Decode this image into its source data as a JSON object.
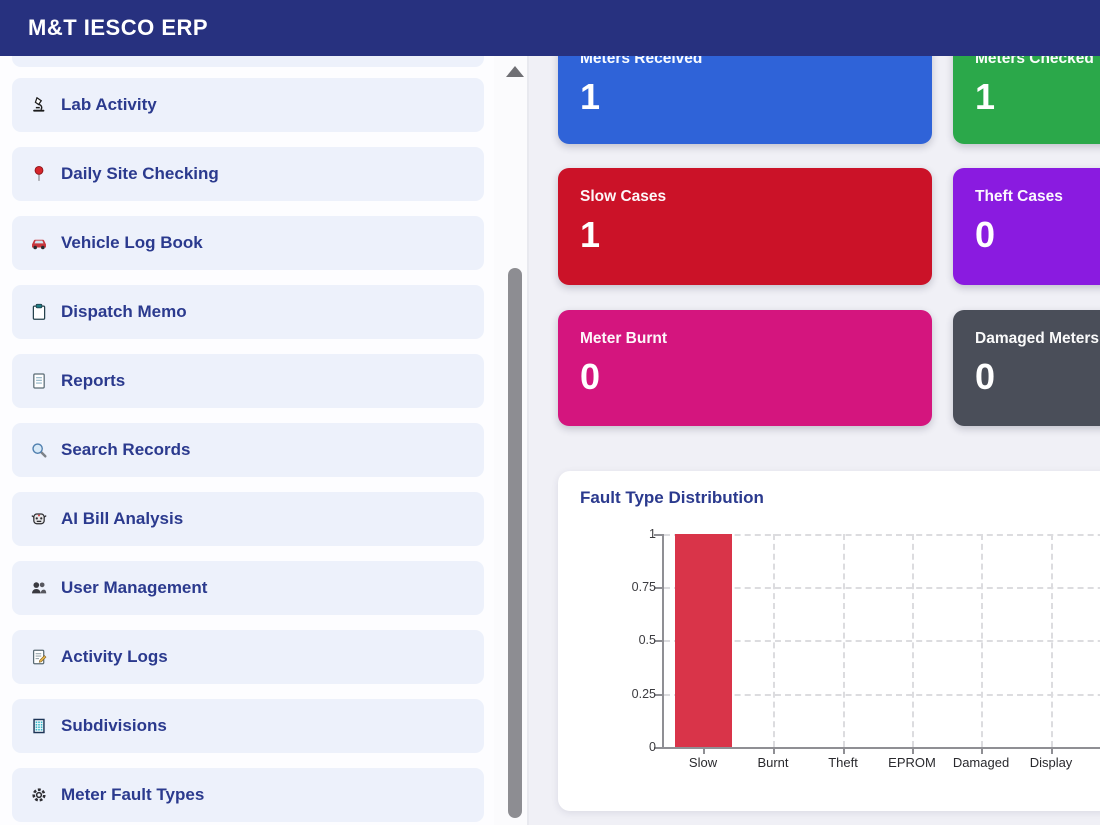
{
  "header": {
    "title": "M&T IESCO ERP"
  },
  "sidebar": {
    "items": [
      {
        "label": "Lab Activity",
        "icon": "microscope-icon"
      },
      {
        "label": "Daily Site Checking",
        "icon": "pushpin-icon"
      },
      {
        "label": "Vehicle Log Book",
        "icon": "car-icon"
      },
      {
        "label": "Dispatch Memo",
        "icon": "clipboard-icon"
      },
      {
        "label": "Reports",
        "icon": "document-icon"
      },
      {
        "label": "Search Records",
        "icon": "magnifier-icon"
      },
      {
        "label": "AI Bill Analysis",
        "icon": "robot-icon"
      },
      {
        "label": "User Management",
        "icon": "users-icon"
      },
      {
        "label": "Activity Logs",
        "icon": "memo-icon"
      },
      {
        "label": "Subdivisions",
        "icon": "building-icon"
      },
      {
        "label": "Meter Fault Types",
        "icon": "gear-icon"
      }
    ]
  },
  "stats": {
    "cards": [
      {
        "label": "Meters Received",
        "value": "1",
        "color": "#2f63d8"
      },
      {
        "label": "Meters Checked",
        "value": "1",
        "color": "#2ba84a"
      },
      {
        "label": "Slow Cases",
        "value": "1",
        "color": "#cb1228"
      },
      {
        "label": "Theft Cases",
        "value": "0",
        "color": "#8a1be0"
      },
      {
        "label": "Meter Burnt",
        "value": "0",
        "color": "#d4157e"
      },
      {
        "label": "Damaged Meters",
        "value": "0",
        "color": "#4a4e59"
      }
    ]
  },
  "chart": {
    "title": "Fault Type Distribution"
  },
  "chart_data": {
    "type": "bar",
    "title": "Fault Type Distribution",
    "categories": [
      "Slow",
      "Burnt",
      "Theft",
      "EPROM",
      "Damaged",
      "Display"
    ],
    "values": [
      1,
      0,
      0,
      0,
      0,
      0
    ],
    "xlabel": "",
    "ylabel": "",
    "ylim": [
      0,
      1
    ],
    "yticks": [
      "0",
      "0.25",
      "0.5",
      "0.75",
      "1"
    ],
    "bar_color": "#d93449",
    "grid": "dashed",
    "legend": "none"
  },
  "colors": {
    "header_bg": "#27317f",
    "sidebar_item_bg": "#edf1fb",
    "sidebar_text": "#2b3a8e",
    "main_bg": "#f0f0f6"
  }
}
